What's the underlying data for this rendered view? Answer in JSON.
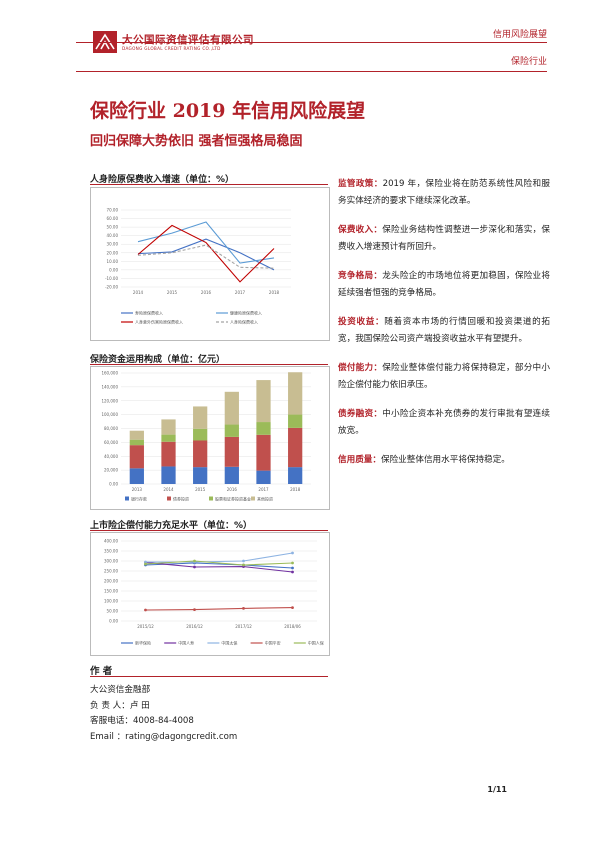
{
  "header": {
    "logo_cn": "大公国际资信评估有限公司",
    "logo_en": "DAGONG GLOBAL CREDIT RATING CO.,LTD",
    "tag1": "信用风险展望",
    "tag2": "保险行业"
  },
  "title": "保险行业 2019 年信用风险展望",
  "subtitle": "回归保障大势依旧  强者恒强格局稳固",
  "charts": {
    "c1_title": "人身险原保费收入增速（单位：%）",
    "c2_title": "保险资金运用构成（单位：亿元）",
    "c3_title": "上市险企偿付能力充足水平（单位：%）"
  },
  "chart_data": [
    {
      "type": "line",
      "x": [
        "2014",
        "2015",
        "2016",
        "2017",
        "2018"
      ],
      "yticks": [
        "-20.00",
        "-10.00",
        "0.00",
        "10.00",
        "20.00",
        "30.00",
        "40.00",
        "50.00",
        "60.00",
        "70.00"
      ],
      "ylim": [
        -20,
        70
      ],
      "series": [
        {
          "name": "寿险原保费收入",
          "color": "#4472c4",
          "values": [
            19,
            21,
            36,
            20,
            0
          ]
        },
        {
          "name": "健康险原保费收入",
          "color": "#5b9bd5",
          "values": [
            33,
            43,
            56,
            8,
            14
          ]
        },
        {
          "name": "人身意外伤害险原保费收入",
          "color": "#c00000",
          "values": [
            18,
            52,
            32,
            -14,
            25
          ]
        },
        {
          "name": "人身险保费收入",
          "color": "#a5a5a5",
          "dashed": true,
          "values": [
            17,
            20,
            29,
            3,
            2
          ]
        }
      ]
    },
    {
      "type": "bar",
      "stacked": true,
      "categories": [
        "2013",
        "2014",
        "2015",
        "2016",
        "2017",
        "2018"
      ],
      "yticks": [
        "0.00",
        "20,000",
        "40,000",
        "60,000",
        "80,000",
        "100,000",
        "120,000",
        "140,000",
        "160,000"
      ],
      "ylim": [
        0,
        160000
      ],
      "series": [
        {
          "name": "银行存款",
          "color": "#4472c4",
          "values": [
            22600,
            25300,
            24300,
            24800,
            19300,
            24300
          ]
        },
        {
          "name": "债券投资",
          "color": "#c0504d",
          "values": [
            33400,
            35600,
            38400,
            43100,
            51600,
            56600
          ]
        },
        {
          "name": "股票和证券投资基金",
          "color": "#9bbb59",
          "values": [
            7900,
            10300,
            16900,
            17800,
            18400,
            19200
          ]
        },
        {
          "name": "其他投资",
          "color": "#c8bd92",
          "values": [
            12900,
            21900,
            32200,
            47200,
            60500,
            61000
          ]
        }
      ]
    },
    {
      "type": "line",
      "x": [
        "2015/12",
        "2016/12",
        "2017/12",
        "2018/06"
      ],
      "yticks": [
        "0.00",
        "50.00",
        "100.00",
        "150.00",
        "200.00",
        "250.00",
        "300.00",
        "350.00",
        "400.00"
      ],
      "ylim": [
        0,
        400
      ],
      "series": [
        {
          "name": "新华保险",
          "color": "#4472c4",
          "values": [
            280,
            290,
            280,
            265
          ]
        },
        {
          "name": "中国人寿",
          "color": "#7030a0",
          "values": [
            293,
            270,
            272,
            245
          ]
        },
        {
          "name": "中国太保",
          "color": "#8db3e2",
          "values": [
            295,
            295,
            300,
            340
          ]
        },
        {
          "name": "中国平安",
          "color": "#c0504d",
          "values": [
            55,
            57,
            63,
            67
          ]
        },
        {
          "name": "中国人保",
          "color": "#9bbb59",
          "values": [
            285,
            300,
            280,
            290
          ]
        }
      ]
    }
  ],
  "summary": [
    {
      "key": "监管政策：",
      "text": "2019 年，保险业将在防范系统性风险和服务实体经济的要求下继续深化改革。"
    },
    {
      "key": "保费收入：",
      "text": "保险业务结构性调整进一步深化和落实，保费收入增速预计有所回升。"
    },
    {
      "key": "竞争格局：",
      "text": "龙头险企的市场地位将更加稳固，保险业将延续强者恒强的竞争格局。"
    },
    {
      "key": "投资收益：",
      "text": "随着资本市场的行情回暖和投资渠道的拓宽，我国保险公司资产端投资收益水平有望提升。"
    },
    {
      "key": "偿付能力：",
      "text": "保险业整体偿付能力将保持稳定，部分中小险企偿付能力依旧承压。"
    },
    {
      "key": "债券融资：",
      "text": "中小险企资本补充债券的发行审批有望连续放宽。"
    },
    {
      "key": "信用质量：",
      "text": "保险业整体信用水平将保持稳定。"
    }
  ],
  "author": {
    "title": "作  者",
    "org": "大公资信金融部",
    "person": "负 责 人：卢 田",
    "phone": "客服电话：4008-84-4008",
    "email": "Email   ：rating@dagongcredit.com"
  },
  "page": "1/11",
  "colors": {
    "brand": "#b2222a"
  }
}
